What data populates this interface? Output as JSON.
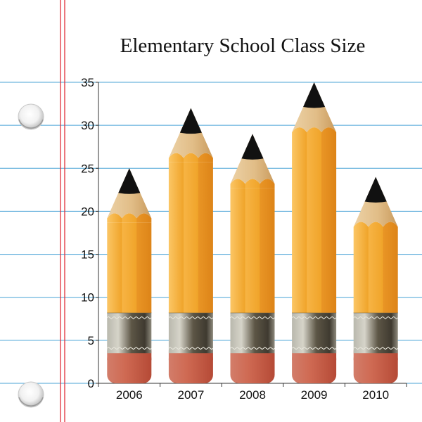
{
  "chart_data": {
    "type": "bar",
    "title": "Elementary School Class Size",
    "categories": [
      "2006",
      "2007",
      "2008",
      "2009",
      "2010"
    ],
    "values": [
      25,
      32,
      29,
      35,
      24
    ],
    "ylim": [
      0,
      35
    ],
    "yticks": [
      0,
      5,
      10,
      15,
      20,
      25,
      30,
      35
    ],
    "xlabel": "",
    "ylabel": "",
    "grid": true
  },
  "colors": {
    "rule_line": "#49a3d6",
    "margin_line": "#e0303a",
    "pencil_body": "#f0a42a",
    "pencil_body_light": "#fbc665",
    "pencil_body_dark": "#dd8418",
    "wood": "#e5c18d",
    "lead": "#111111",
    "ferrule": "#8a8b7d",
    "eraser": "#c85d4a"
  },
  "icons": {
    "bar_mark": "pencil-icon",
    "binder_hole": "punch-hole-icon"
  }
}
